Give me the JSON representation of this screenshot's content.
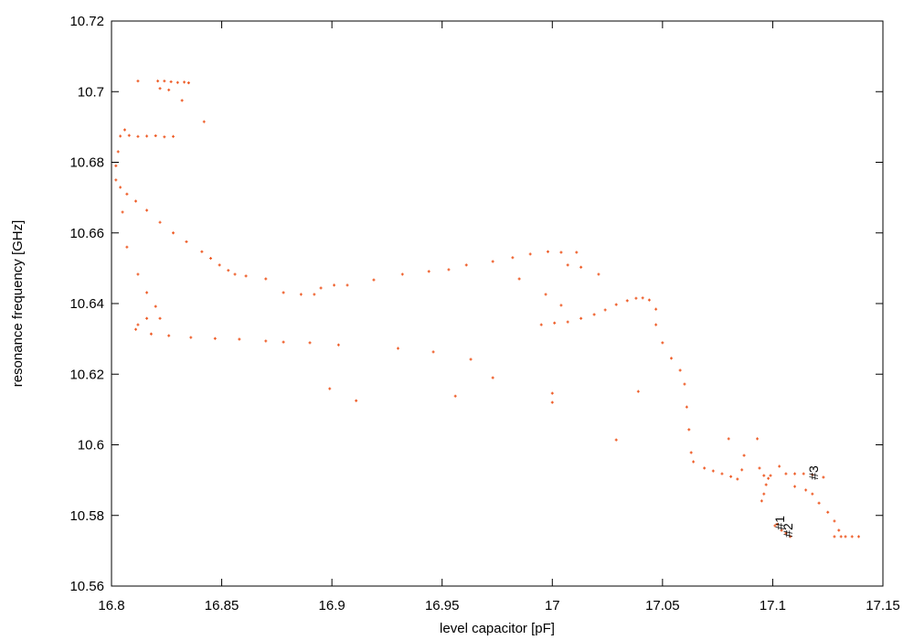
{
  "chart_data": {
    "type": "scatter",
    "xlabel": "level capacitor [pF]",
    "ylabel": "resonance frequency [GHz]",
    "xlim": [
      16.8,
      17.15
    ],
    "ylim": [
      10.56,
      10.72
    ],
    "xticks": [
      16.8,
      16.85,
      16.9,
      16.95,
      17,
      17.05,
      17.1,
      17.15
    ],
    "yticks": [
      10.56,
      10.58,
      10.6,
      10.62,
      10.64,
      10.66,
      10.68,
      10.7,
      10.72
    ],
    "series": [
      {
        "color": "#ee5a24",
        "x": [
          16.812,
          16.821,
          16.824,
          16.827,
          16.83,
          16.833,
          16.835,
          16.822,
          16.826,
          16.832,
          16.842,
          16.804,
          16.808,
          16.812,
          16.816,
          16.82,
          16.824,
          16.828,
          16.806,
          16.803,
          16.802,
          16.802,
          16.804,
          16.807,
          16.811,
          16.816,
          16.822,
          16.828,
          16.834,
          16.841,
          16.845,
          16.849,
          16.853,
          16.856,
          16.861,
          16.87,
          16.878,
          16.886,
          16.892,
          16.895,
          16.901,
          16.907,
          16.919,
          16.932,
          16.944,
          16.953,
          16.961,
          16.973,
          16.982,
          16.99,
          16.998,
          17.004,
          17.011,
          17.007,
          17.013,
          17.021,
          16.997,
          17.004,
          16.985,
          17.0,
          17.0,
          17.029,
          17.039,
          16.963,
          16.973,
          16.956,
          16.911,
          16.899,
          16.946,
          16.93,
          16.805,
          16.807,
          16.812,
          16.816,
          16.82,
          16.822,
          16.816,
          16.812,
          16.811,
          16.818,
          16.826,
          16.836,
          16.847,
          16.858,
          16.87,
          16.878,
          16.89,
          16.903,
          16.995,
          17.001,
          17.007,
          17.013,
          17.019,
          17.024,
          17.029,
          17.034,
          17.038,
          17.041,
          17.044,
          17.047,
          17.047,
          17.05,
          17.054,
          17.058,
          17.06,
          17.061,
          17.062,
          17.063,
          17.064,
          17.069,
          17.073,
          17.077,
          17.081,
          17.084,
          17.086,
          17.094,
          17.096,
          17.097,
          17.096,
          17.095,
          17.08,
          17.093,
          17.087,
          17.098,
          17.099,
          17.103,
          17.106,
          17.11,
          17.114,
          17.118,
          17.123,
          17.11,
          17.115,
          17.118,
          17.121,
          17.125,
          17.128,
          17.13,
          17.128,
          17.131,
          17.133,
          17.136,
          17.139,
          17.101,
          17.102,
          17.104,
          17.106,
          17.108
        ],
        "y": [
          10.703,
          10.703,
          10.703,
          10.7028,
          10.7026,
          10.7027,
          10.7025,
          10.7009,
          10.7005,
          10.6975,
          10.6915,
          10.6874,
          10.6876,
          10.6873,
          10.6874,
          10.6875,
          10.6872,
          10.6873,
          10.6892,
          10.683,
          10.679,
          10.675,
          10.6729,
          10.671,
          10.669,
          10.6664,
          10.663,
          10.66,
          10.6575,
          10.6547,
          10.6528,
          10.6509,
          10.6494,
          10.6483,
          10.6478,
          10.647,
          10.6431,
          10.6426,
          10.6426,
          10.6444,
          10.6452,
          10.6452,
          10.6467,
          10.6483,
          10.6491,
          10.6496,
          10.6509,
          10.6519,
          10.653,
          10.654,
          10.6547,
          10.6545,
          10.6545,
          10.6509,
          10.6503,
          10.6483,
          10.6426,
          10.6395,
          10.647,
          10.6146,
          10.612,
          10.6014,
          10.6151,
          10.6242,
          10.619,
          10.6138,
          10.6125,
          10.6159,
          10.6263,
          10.6273,
          10.6659,
          10.656,
          10.6483,
          10.6431,
          10.6392,
          10.6358,
          10.6358,
          10.634,
          10.6327,
          10.6314,
          10.6309,
          10.6304,
          10.6301,
          10.6299,
          10.6294,
          10.6291,
          10.6289,
          10.6283,
          10.634,
          10.6345,
          10.6348,
          10.6358,
          10.6369,
          10.6382,
          10.6397,
          10.6408,
          10.6415,
          10.6416,
          10.641,
          10.6384,
          10.634,
          10.6289,
          10.6245,
          10.6211,
          10.6172,
          10.6107,
          10.6043,
          10.5978,
          10.5952,
          10.5934,
          10.5926,
          10.5918,
          10.591,
          10.5903,
          10.5929,
          10.5934,
          10.5913,
          10.5887,
          10.5861,
          10.5841,
          10.6017,
          10.6017,
          10.597,
          10.5905,
          10.5913,
          10.5939,
          10.5918,
          10.5918,
          10.5918,
          10.5915,
          10.5908,
          10.5882,
          10.5872,
          10.5861,
          10.5835,
          10.5809,
          10.5784,
          10.5758,
          10.574,
          10.574,
          10.574,
          10.574,
          10.574,
          10.5771,
          10.5775,
          10.5758,
          10.575,
          10.574
        ]
      }
    ],
    "annotations": [
      {
        "text": "#1",
        "x": 17.1032,
        "y": 10.5779
      },
      {
        "text": "#2",
        "x": 17.1069,
        "y": 10.5758
      },
      {
        "text": "#3",
        "x": 17.1185,
        "y": 10.5921
      }
    ]
  }
}
